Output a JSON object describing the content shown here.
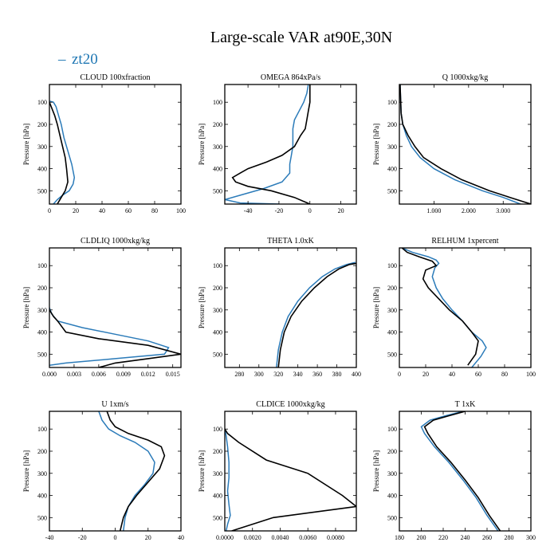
{
  "figure": {
    "title": "Large-scale VAR at90E,30N",
    "legend": [
      {
        "symbol": "–",
        "label": "zt20",
        "color": "#2b7bb9"
      }
    ],
    "ylabel": "Pressure [hPa]",
    "yticks": [
      100,
      200,
      300,
      400,
      500
    ],
    "ylim": [
      20,
      560
    ]
  },
  "chart_data": [
    {
      "type": "line",
      "title": "CLOUD  100xfraction",
      "xlim": [
        0,
        100
      ],
      "xticks": [
        0,
        20,
        40,
        60,
        80,
        100
      ],
      "xticklabels": [
        "0",
        "20",
        "40",
        "60",
        "80",
        "100"
      ],
      "ylabel": "Pressure [hPa]",
      "ylim": [
        20,
        560
      ],
      "yticks": [
        100,
        200,
        300,
        400,
        500
      ],
      "series": [
        {
          "name": "zt20",
          "color": "#2b7bb9",
          "x": [
            0,
            3,
            5,
            7,
            9,
            11,
            14,
            17,
            19,
            18,
            15,
            10,
            6,
            3
          ],
          "y": [
            95,
            100,
            120,
            160,
            200,
            260,
            320,
            380,
            440,
            470,
            500,
            520,
            540,
            560
          ]
        },
        {
          "name": "",
          "color": "#000000",
          "x": [
            0,
            2,
            4,
            6,
            8,
            10,
            12,
            13,
            14,
            12,
            9,
            6
          ],
          "y": [
            100,
            130,
            160,
            200,
            250,
            300,
            350,
            400,
            460,
            500,
            530,
            560
          ]
        }
      ]
    },
    {
      "type": "line",
      "title": "OMEGA  864xPa/s",
      "xlim": [
        -55,
        30
      ],
      "xticks": [
        -40,
        -20,
        0,
        20
      ],
      "xticklabels": [
        "-40",
        "-20",
        "0",
        "20"
      ],
      "ylabel": "Pressure [hPa]",
      "ylim": [
        20,
        560
      ],
      "yticks": [
        100,
        200,
        300,
        400,
        500
      ],
      "series": [
        {
          "name": "zt20",
          "color": "#2b7bb9",
          "x": [
            -1,
            -2,
            -4,
            -7,
            -10,
            -11,
            -11,
            -11,
            -12,
            -13,
            -13,
            -18,
            -30,
            -45,
            -55,
            -45,
            -20
          ],
          "y": [
            20,
            60,
            100,
            140,
            180,
            220,
            260,
            300,
            340,
            380,
            420,
            460,
            490,
            520,
            540,
            555,
            560
          ]
        },
        {
          "name": "",
          "color": "#000000",
          "x": [
            0,
            0,
            0,
            -1,
            -2,
            -3,
            -6,
            -10,
            -18,
            -28,
            -40,
            -45,
            -50,
            -48,
            -40,
            -25,
            -10,
            0
          ],
          "y": [
            20,
            60,
            100,
            140,
            180,
            220,
            250,
            300,
            340,
            370,
            400,
            420,
            440,
            460,
            480,
            500,
            530,
            560
          ]
        }
      ]
    },
    {
      "type": "line",
      "title": "Q  1000xkg/kg",
      "xlim": [
        0,
        3.8
      ],
      "xticks": [
        1,
        2,
        3
      ],
      "xticklabels": [
        "1.000",
        "2.000",
        "3.000"
      ],
      "ylabel": "Pressure [hPa]",
      "ylim": [
        20,
        560
      ],
      "yticks": [
        100,
        200,
        300,
        400,
        500
      ],
      "series": [
        {
          "name": "zt20",
          "color": "#2b7bb9",
          "x": [
            0.02,
            0.05,
            0.1,
            0.2,
            0.35,
            0.6,
            1.0,
            1.6,
            2.4,
            3.0,
            3.5
          ],
          "y": [
            20,
            150,
            200,
            250,
            300,
            350,
            400,
            450,
            500,
            530,
            560
          ]
        },
        {
          "name": "",
          "color": "#000000",
          "x": [
            0.02,
            0.05,
            0.1,
            0.25,
            0.45,
            0.7,
            1.2,
            1.8,
            2.6,
            3.2,
            3.8
          ],
          "y": [
            20,
            150,
            200,
            250,
            300,
            350,
            400,
            450,
            500,
            530,
            560
          ]
        }
      ]
    },
    {
      "type": "line",
      "title": "CLDLIQ  1000xkg/kg",
      "xlim": [
        0,
        0.016
      ],
      "xticks": [
        0,
        0.003,
        0.006,
        0.009,
        0.012,
        0.015
      ],
      "xticklabels": [
        "0.000",
        "0.003",
        "0.006",
        "0.009",
        "0.012",
        "0.015"
      ],
      "ylabel": "Pressure [hPa]",
      "ylim": [
        20,
        560
      ],
      "yticks": [
        100,
        200,
        300,
        400,
        500
      ],
      "series": [
        {
          "name": "zt20",
          "color": "#2b7bb9",
          "x": [
            0,
            0.0003,
            0.001,
            0.004,
            0.008,
            0.012,
            0.0145,
            0.014,
            0.008,
            0.002,
            0.0
          ],
          "y": [
            290,
            320,
            350,
            380,
            410,
            440,
            470,
            500,
            520,
            540,
            550
          ]
        },
        {
          "name": "",
          "color": "#000000",
          "x": [
            0,
            0.0005,
            0.001,
            0.002,
            0.006,
            0.012,
            0.016,
            0.012,
            0.008,
            0.006
          ],
          "y": [
            300,
            330,
            350,
            400,
            430,
            460,
            500,
            520,
            540,
            560
          ]
        }
      ]
    },
    {
      "type": "line",
      "title": "THETA  1.0xK",
      "xlim": [
        265,
        400
      ],
      "xticks": [
        280,
        300,
        320,
        340,
        360,
        380,
        400
      ],
      "xticklabels": [
        "280",
        "300",
        "320",
        "340",
        "360",
        "380",
        "400"
      ],
      "ylabel": "Pressure [hPa]",
      "ylim": [
        20,
        560
      ],
      "yticks": [
        100,
        200,
        300,
        400,
        500
      ],
      "series": [
        {
          "name": "zt20",
          "color": "#2b7bb9",
          "x": [
            318,
            320,
            324,
            330,
            340,
            352,
            365,
            378,
            390,
            399
          ],
          "y": [
            560,
            480,
            400,
            330,
            260,
            200,
            150,
            115,
            95,
            85
          ]
        },
        {
          "name": "",
          "color": "#000000",
          "x": [
            320,
            322,
            326,
            333,
            344,
            357,
            370,
            382,
            393,
            400
          ],
          "y": [
            560,
            480,
            400,
            330,
            260,
            200,
            150,
            115,
            95,
            90
          ]
        }
      ]
    },
    {
      "type": "line",
      "title": "RELHUM  1xpercent",
      "xlim": [
        0,
        100
      ],
      "xticks": [
        0,
        20,
        40,
        60,
        80,
        100
      ],
      "xticklabels": [
        "0",
        "20",
        "40",
        "60",
        "80",
        "100"
      ],
      "ylabel": "Pressure [hPa]",
      "ylim": [
        20,
        560
      ],
      "yticks": [
        100,
        200,
        300,
        400,
        500
      ],
      "series": [
        {
          "name": "zt20",
          "color": "#2b7bb9",
          "x": [
            2,
            10,
            22,
            28,
            30,
            27,
            25,
            28,
            33,
            40,
            48,
            55,
            63,
            66,
            62,
            55
          ],
          "y": [
            20,
            40,
            60,
            75,
            90,
            110,
            150,
            200,
            250,
            300,
            350,
            400,
            440,
            470,
            510,
            560
          ]
        },
        {
          "name": "",
          "color": "#000000",
          "x": [
            2,
            6,
            15,
            25,
            28,
            20,
            18,
            22,
            30,
            38,
            48,
            55,
            60,
            58,
            52
          ],
          "y": [
            20,
            40,
            60,
            80,
            100,
            120,
            160,
            200,
            250,
            300,
            350,
            400,
            440,
            500,
            550
          ]
        }
      ]
    },
    {
      "type": "line",
      "title": "U  1xm/s",
      "xlim": [
        -40,
        40
      ],
      "xticks": [
        -40,
        -20,
        0,
        20,
        40
      ],
      "xticklabels": [
        "-40",
        "-20",
        "0",
        "20",
        "40"
      ],
      "ylabel": "Pressure [hPa]",
      "ylim": [
        20,
        560
      ],
      "yticks": [
        100,
        200,
        300,
        400,
        500
      ],
      "series": [
        {
          "name": "zt20",
          "color": "#2b7bb9",
          "x": [
            -10,
            -8,
            -4,
            3,
            12,
            20,
            24,
            23,
            18,
            12,
            8,
            6,
            5
          ],
          "y": [
            20,
            60,
            100,
            130,
            160,
            200,
            250,
            300,
            350,
            400,
            450,
            500,
            560
          ]
        },
        {
          "name": "",
          "color": "#000000",
          "x": [
            -5,
            -3,
            0,
            8,
            20,
            28,
            30,
            27,
            20,
            13,
            8,
            5,
            3
          ],
          "y": [
            20,
            60,
            90,
            120,
            150,
            180,
            220,
            280,
            340,
            400,
            450,
            500,
            560
          ]
        }
      ]
    },
    {
      "type": "line",
      "title": "CLDICE  1000xkg/kg",
      "xlim": [
        0,
        0.0095
      ],
      "xticks": [
        0,
        0.002,
        0.004,
        0.006,
        0.008
      ],
      "xticklabels": [
        "0.0000",
        "0.0020",
        "0.0040",
        "0.0060",
        "0.0080"
      ],
      "ylabel": "Pressure [hPa]",
      "ylim": [
        20,
        560
      ],
      "yticks": [
        100,
        200,
        300,
        400,
        500
      ],
      "series": [
        {
          "name": "zt20",
          "color": "#2b7bb9",
          "x": [
            0,
            0.0001,
            0.0002,
            0.0003,
            0.0003,
            0.0002,
            0.0003,
            0.0004,
            0.0002,
            0.0001
          ],
          "y": [
            100,
            130,
            180,
            250,
            320,
            380,
            440,
            490,
            530,
            560
          ]
        },
        {
          "name": "",
          "color": "#000000",
          "x": [
            0,
            0.0002,
            0.001,
            0.003,
            0.006,
            0.0085,
            0.0095,
            0.0035,
            0.0005
          ],
          "y": [
            100,
            120,
            160,
            240,
            300,
            400,
            450,
            500,
            560
          ]
        }
      ]
    },
    {
      "type": "line",
      "title": "T  1xK",
      "xlim": [
        180,
        300
      ],
      "xticks": [
        180,
        200,
        220,
        240,
        260,
        280,
        300
      ],
      "xticklabels": [
        "180",
        "200",
        "220",
        "240",
        "260",
        "280",
        "300"
      ],
      "ylabel": "Pressure [hPa]",
      "ylim": [
        20,
        560
      ],
      "yticks": [
        100,
        200,
        300,
        400,
        500
      ],
      "series": [
        {
          "name": "zt20",
          "color": "#2b7bb9",
          "x": [
            238,
            222,
            208,
            200,
            203,
            212,
            225,
            238,
            250,
            260,
            270
          ],
          "y": [
            20,
            40,
            60,
            90,
            120,
            180,
            250,
            330,
            410,
            490,
            560
          ]
        },
        {
          "name": "",
          "color": "#000000",
          "x": [
            240,
            225,
            211,
            203,
            206,
            214,
            227,
            240,
            252,
            262,
            272
          ],
          "y": [
            20,
            40,
            60,
            90,
            120,
            180,
            250,
            330,
            410,
            490,
            560
          ]
        }
      ]
    }
  ]
}
